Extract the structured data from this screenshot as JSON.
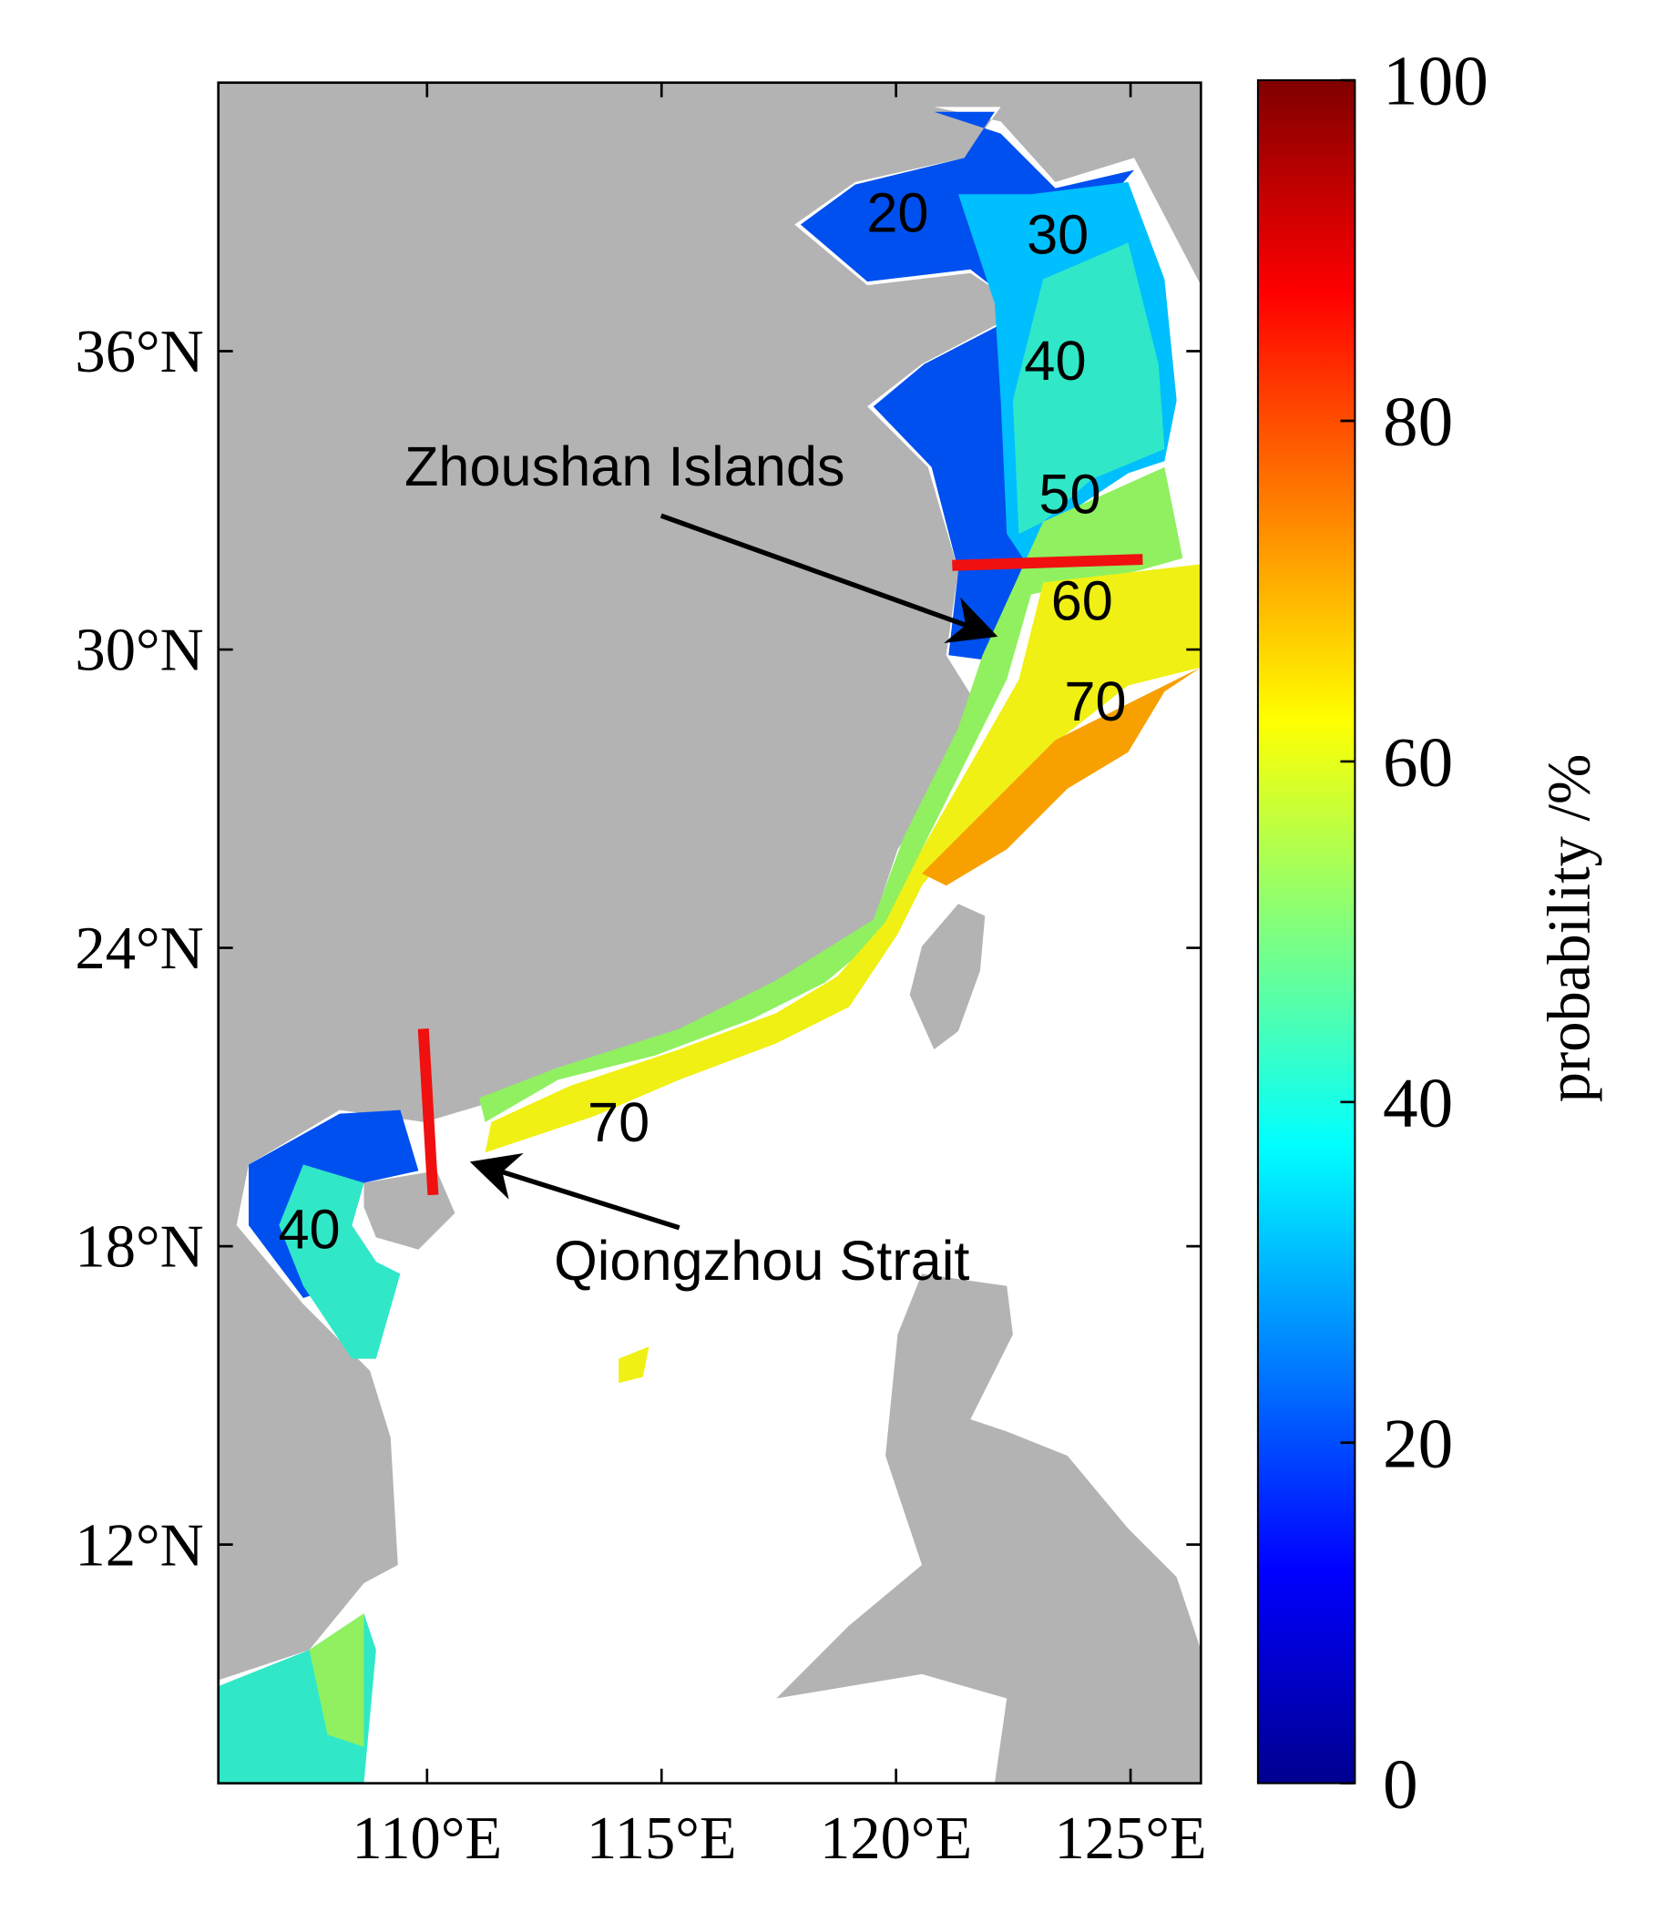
{
  "chart_data": {
    "type": "map",
    "xlim": [
      105.55,
      126.5
    ],
    "ylim": [
      7.2,
      41.4
    ],
    "xticks": [
      {
        "value": 110,
        "label": "110°E"
      },
      {
        "value": 115,
        "label": "115°E"
      },
      {
        "value": 120,
        "label": "120°E"
      },
      {
        "value": 125,
        "label": "125°E"
      }
    ],
    "yticks": [
      {
        "value": 12,
        "label": "12°N"
      },
      {
        "value": 18,
        "label": "18°N"
      },
      {
        "value": 24,
        "label": "24°N"
      },
      {
        "value": 30,
        "label": "30°N"
      },
      {
        "value": 36,
        "label": "36°N"
      }
    ],
    "colorbar": {
      "label": "probability /%",
      "lim": [
        0,
        100
      ],
      "ticks": [
        0,
        20,
        40,
        60,
        80,
        100
      ],
      "colormap": "jet"
    },
    "contour_labels": [
      20,
      30,
      40,
      50,
      60,
      70,
      70,
      40
    ],
    "annotations": [
      "Zhoushan Islands",
      "Qiongzhou Strait"
    ]
  }
}
